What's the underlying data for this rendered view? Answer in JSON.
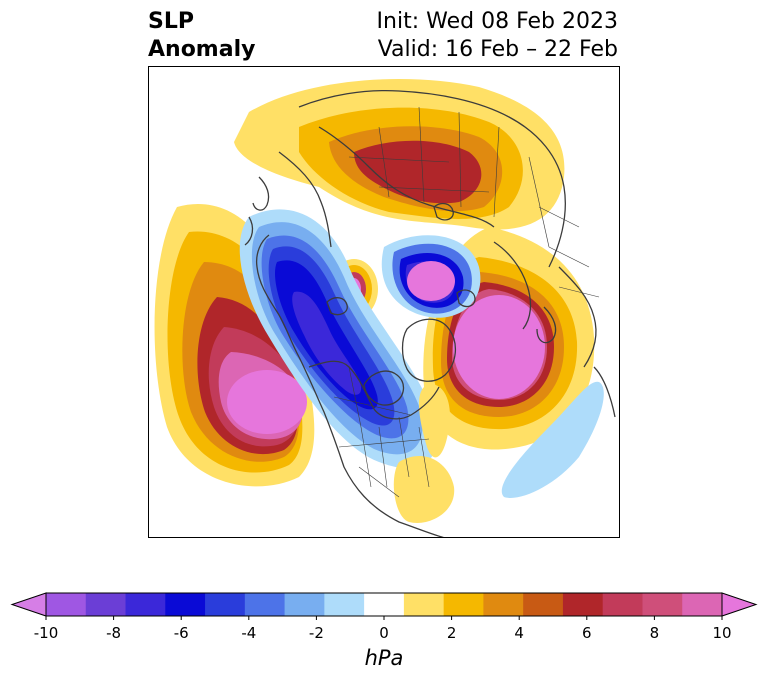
{
  "title": {
    "variable_line1": "SLP",
    "variable_line2": "Anomaly",
    "init": "Init: Wed 08 Feb 2023",
    "valid": "Valid: 16 Feb – 22 Feb"
  },
  "colorbar": {
    "units": "hPa",
    "min": -10,
    "max": 10,
    "tick_labels": [
      "-10",
      "-8",
      "-6",
      "-4",
      "-2",
      "0",
      "2",
      "4",
      "6",
      "8",
      "10"
    ],
    "colors": [
      "#d67ee6",
      "#9f57e3",
      "#6b3ed6",
      "#3b28d9",
      "#0a0ad6",
      "#2a3ddb",
      "#4d73e8",
      "#78aef0",
      "#aedcfa",
      "#ffffff",
      "#ffe066",
      "#f5b800",
      "#e08a10",
      "#c85a14",
      "#b0262a",
      "#c23b5a",
      "#cf4f7a",
      "#dc66b4",
      "#e676dc"
    ]
  },
  "colors": {
    "ocean": "#ffffff",
    "coastline": "#3c3c3c"
  }
}
